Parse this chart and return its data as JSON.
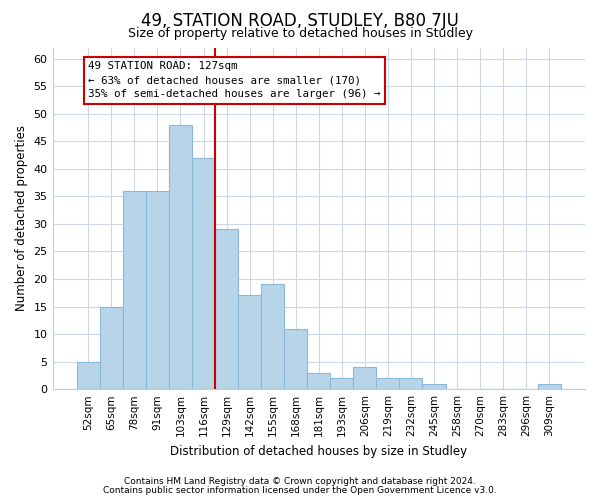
{
  "title": "49, STATION ROAD, STUDLEY, B80 7JU",
  "subtitle": "Size of property relative to detached houses in Studley",
  "xlabel": "Distribution of detached houses by size in Studley",
  "ylabel": "Number of detached properties",
  "bar_labels": [
    "52sqm",
    "65sqm",
    "78sqm",
    "91sqm",
    "103sqm",
    "116sqm",
    "129sqm",
    "142sqm",
    "155sqm",
    "168sqm",
    "181sqm",
    "193sqm",
    "206sqm",
    "219sqm",
    "232sqm",
    "245sqm",
    "258sqm",
    "270sqm",
    "283sqm",
    "296sqm",
    "309sqm"
  ],
  "bar_values": [
    5,
    15,
    36,
    36,
    48,
    42,
    29,
    17,
    19,
    11,
    3,
    2,
    4,
    2,
    2,
    1,
    0,
    0,
    0,
    0,
    1
  ],
  "bar_color": "#b8d4e8",
  "bar_edge_color": "#8ab8d8",
  "vline_color": "#cc0000",
  "ylim": [
    0,
    62
  ],
  "yticks": [
    0,
    5,
    10,
    15,
    20,
    25,
    30,
    35,
    40,
    45,
    50,
    55,
    60
  ],
  "annotation_title": "49 STATION ROAD: 127sqm",
  "annotation_line2": "← 63% of detached houses are smaller (170)",
  "annotation_line3": "35% of semi-detached houses are larger (96) →",
  "footer_line1": "Contains HM Land Registry data © Crown copyright and database right 2024.",
  "footer_line2": "Contains public sector information licensed under the Open Government Licence v3.0.",
  "grid_color": "#ccd8e8",
  "background_color": "#ffffff",
  "plot_bg_color": "#ffffff"
}
